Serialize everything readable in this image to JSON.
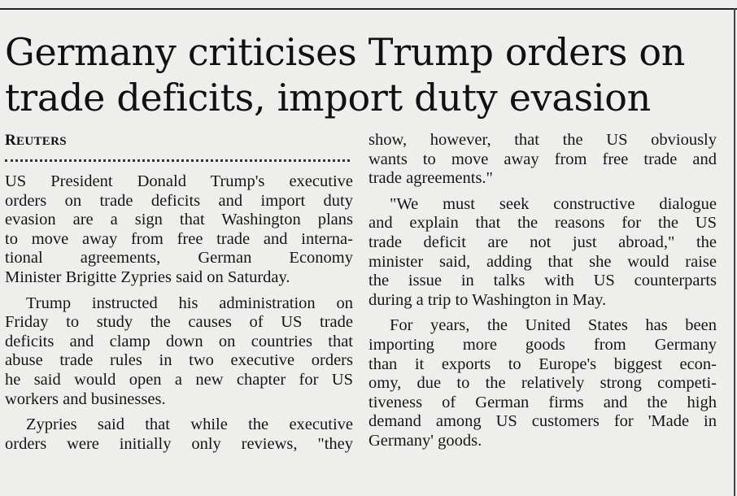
{
  "article": {
    "headline": [
      "Germany criticises Trump orders on",
      "trade deficits, import duty evasion"
    ],
    "byline": "REUTERS",
    "left_column": [
      {
        "lines": [
          "US President Donald Trump's executive",
          "orders on trade deficits and import duty",
          "evasion are a sign that Washington plans",
          "to move away from free trade and interna-",
          "tional agreements, German Economy",
          "Minister Brigitte Zypries said on Saturday."
        ]
      },
      {
        "lines": [
          "Trump instructed his administration on",
          "Friday to study the causes of US trade",
          "deficits and clamp down on countries that",
          "abuse trade rules in two executive orders",
          "he said would open a new chapter for US",
          "workers and businesses."
        ]
      },
      {
        "lines": [
          "Zypries said that while the executive",
          "orders were initially only reviews, \"they"
        ]
      }
    ],
    "right_column": [
      {
        "lines": [
          "show, however, that the US obviously",
          "wants to move away from free trade and",
          "trade agreements.\""
        ]
      },
      {
        "lines": [
          "\"We must seek constructive dialogue",
          "and explain that the reasons for the US",
          "trade deficit are not just abroad,\" the",
          "minister said, adding that she would raise",
          "the issue in talks with US counterparts",
          "during a trip to Washington in May."
        ]
      },
      {
        "lines": [
          "For years, the United States has been",
          "importing more goods from Germany",
          "than it exports to Europe's biggest econ-",
          "omy, due to the relatively strong competi-",
          "tiveness of German firms and the high",
          "demand among US customers for 'Made in",
          "Germany' goods."
        ]
      }
    ]
  }
}
